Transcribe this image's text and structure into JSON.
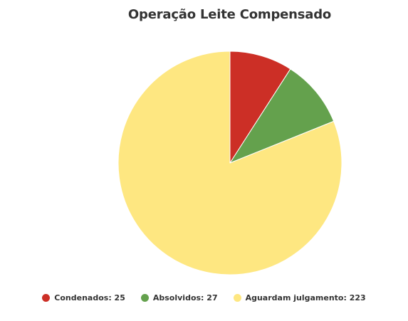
{
  "chart_data": {
    "type": "pie",
    "title": "Operação Leite Compensado",
    "slices": [
      {
        "label": "Condenados",
        "value": 25,
        "color": "#cc2f26"
      },
      {
        "label": "Absolvidos",
        "value": 27,
        "color": "#64a14d"
      },
      {
        "label": "Aguardam julgamento",
        "value": 223,
        "color": "#fee781"
      }
    ],
    "legend_position": "bottom",
    "legend_labels": [
      "Condenados: 25",
      "Absolvidos: 27",
      "Aguardam julgamento: 223"
    ]
  }
}
